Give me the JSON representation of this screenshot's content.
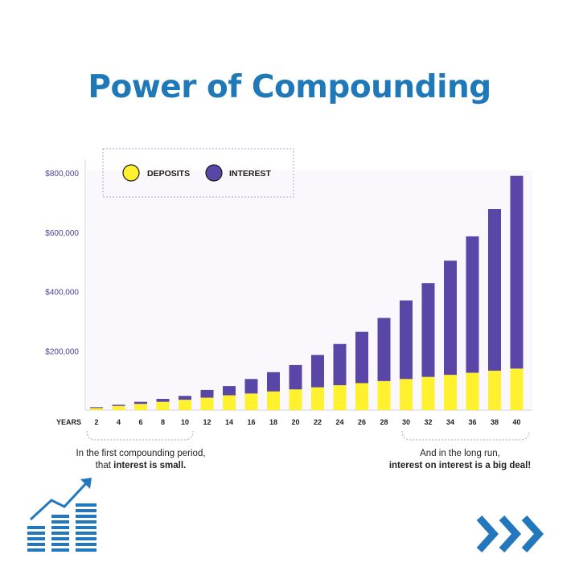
{
  "title": "Power of Compounding",
  "colors": {
    "title": "#1f78b8",
    "deposits": "#fff12e",
    "interest": "#5a46a6",
    "axis_text": "#4b3f96",
    "icon_blue": "#2378bd"
  },
  "legend": {
    "deposits_label": "DEPOSITS",
    "interest_label": "INTEREST"
  },
  "notes": {
    "left_line1": "In the first compounding period,",
    "left_line2_pre": "that ",
    "left_line2_bold": "interest is small.",
    "right_line1": "And in the long run,",
    "right_line2_bold": "interest on interest is a big deal!"
  },
  "icons": {
    "growth": "bar-chart-growth-arrow-icon",
    "next": "triple-chevron-right-icon"
  },
  "chart_data": {
    "type": "bar",
    "stacked": true,
    "xlabel": "YEARS",
    "categories": [
      "2",
      "4",
      "6",
      "8",
      "10",
      "12",
      "14",
      "16",
      "18",
      "20",
      "22",
      "24",
      "26",
      "28",
      "30",
      "32",
      "34",
      "36",
      "38",
      "40"
    ],
    "series": [
      {
        "name": "DEPOSITS",
        "values": [
          7000,
          14000,
          21000,
          28000,
          35000,
          42000,
          50000,
          56000,
          63000,
          70000,
          77000,
          84000,
          91000,
          98000,
          105000,
          112000,
          119000,
          126000,
          133000,
          140000
        ]
      },
      {
        "name": "INTEREST",
        "values": [
          3000,
          4000,
          7000,
          10000,
          13000,
          26000,
          31000,
          49000,
          65000,
          82000,
          109000,
          139000,
          173000,
          213000,
          265000,
          316000,
          385000,
          460000,
          545000,
          650000
        ]
      }
    ],
    "yticks": [
      {
        "value": 200000,
        "label": "$200,000"
      },
      {
        "value": 400000,
        "label": "$400,000"
      },
      {
        "value": 600000,
        "label": "$600,000"
      },
      {
        "value": 800000,
        "label": "$800,000"
      }
    ],
    "ylim": [
      0,
      800000
    ],
    "grid": false,
    "legend_position": "top-left"
  }
}
